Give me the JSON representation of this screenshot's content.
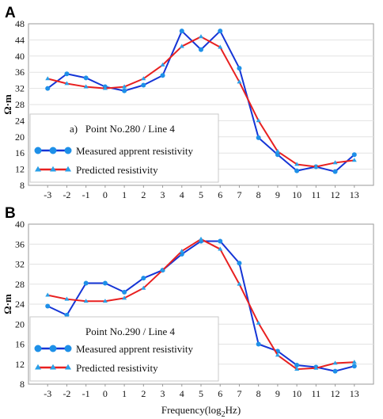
{
  "chart_data": [
    {
      "panel_label": "A",
      "type": "line",
      "legend_title": "a)   Point No.280 / Line 4",
      "ylabel": "Ω·m",
      "xlabel": "",
      "x": [
        -3,
        -2,
        -1,
        0,
        1,
        2,
        3,
        4,
        5,
        6,
        7,
        8,
        9,
        10,
        11,
        12,
        13
      ],
      "xlim": [
        -4,
        14
      ],
      "ylim": [
        8,
        48
      ],
      "yticks": [
        8,
        12,
        16,
        20,
        24,
        28,
        32,
        36,
        40,
        44,
        48
      ],
      "grid": true,
      "legend_position": "bottom-left",
      "series": [
        {
          "name": "Measured apprent resistivity",
          "color": "#1535d6",
          "marker": "circle",
          "values": [
            32.0,
            35.6,
            34.6,
            32.4,
            31.4,
            32.8,
            35.2,
            46.2,
            41.6,
            46.2,
            37.0,
            19.8,
            15.6,
            11.6,
            12.6,
            11.4,
            15.6
          ]
        },
        {
          "name": "Predicted resistivity",
          "color": "#e82020",
          "marker": "triangle",
          "values": [
            34.4,
            33.2,
            32.4,
            32.0,
            32.4,
            34.4,
            37.8,
            42.4,
            44.8,
            42.2,
            33.6,
            24.0,
            16.4,
            13.2,
            12.6,
            13.6,
            14.2
          ]
        }
      ]
    },
    {
      "panel_label": "B",
      "type": "line",
      "legend_title": "Point No.290 / Line 4",
      "ylabel": "Ω·m",
      "xlabel": "Frequency(log₂Hz)",
      "x": [
        -3,
        -2,
        -1,
        0,
        1,
        2,
        3,
        4,
        5,
        6,
        7,
        8,
        9,
        10,
        11,
        12,
        13
      ],
      "xlim": [
        -4,
        14
      ],
      "ylim": [
        8,
        40
      ],
      "yticks": [
        8,
        12,
        16,
        20,
        24,
        28,
        32,
        36,
        40
      ],
      "grid": true,
      "legend_position": "bottom-left",
      "series": [
        {
          "name": "Measured apprent resistivity",
          "color": "#1535d6",
          "marker": "circle",
          "values": [
            23.6,
            21.8,
            28.2,
            28.2,
            26.4,
            29.2,
            30.8,
            34.0,
            36.6,
            36.6,
            32.2,
            16.0,
            14.6,
            11.8,
            11.4,
            10.6,
            11.6
          ]
        },
        {
          "name": "Predicted resistivity",
          "color": "#e82020",
          "marker": "triangle",
          "values": [
            25.8,
            25.0,
            24.6,
            24.6,
            25.2,
            27.2,
            30.8,
            34.6,
            37.0,
            35.0,
            28.0,
            20.2,
            13.8,
            11.0,
            11.2,
            12.2,
            12.4
          ]
        }
      ]
    }
  ]
}
